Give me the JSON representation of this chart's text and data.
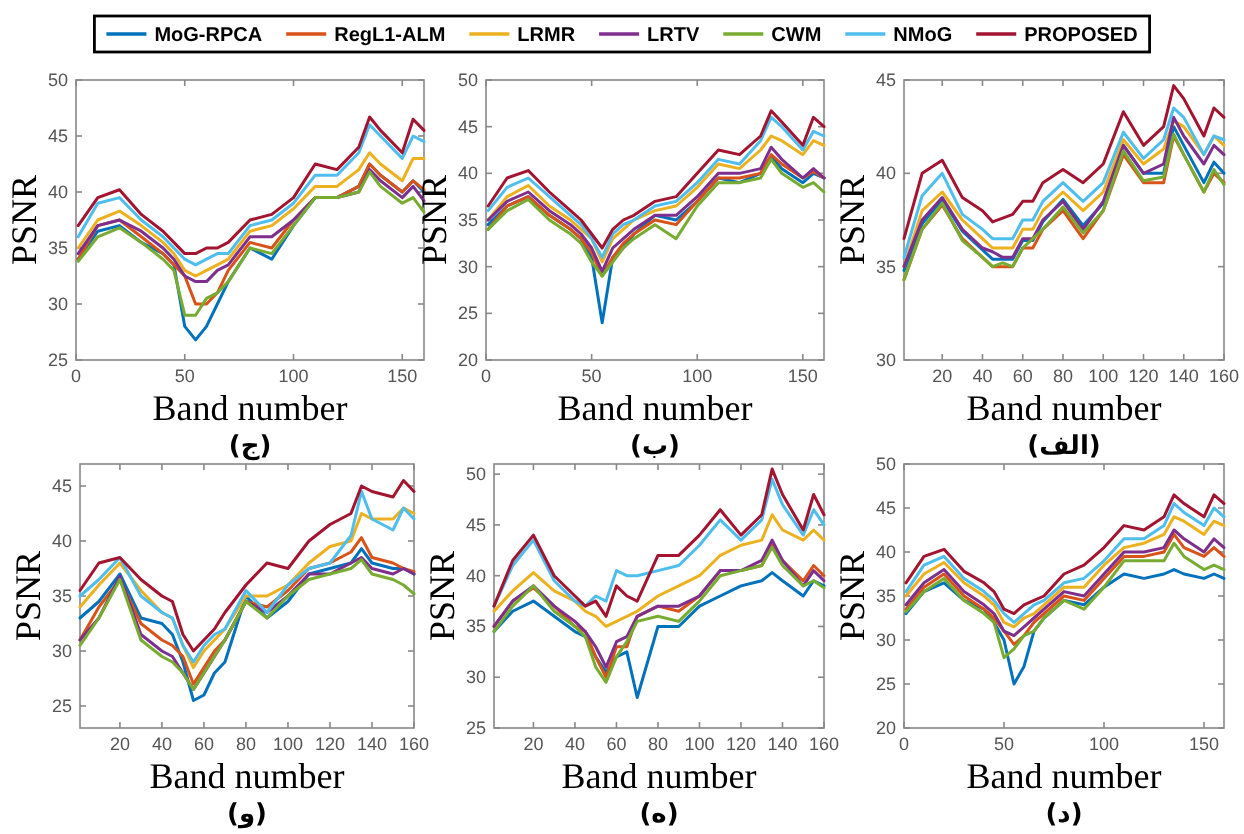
{
  "chart_data": [
    {
      "type": "line",
      "title": "(ج)",
      "xlabel": "Band number",
      "ylabel": "PSNR",
      "legend": "top",
      "x": [
        1,
        10,
        20,
        30,
        40,
        45,
        50,
        55,
        60,
        65,
        70,
        80,
        90,
        100,
        110,
        120,
        130,
        135,
        140,
        150,
        155,
        160
      ],
      "xlim": [
        0,
        160
      ],
      "xticks": [
        0,
        50,
        100,
        150
      ],
      "ylim": [
        25,
        50
      ],
      "yticks": [
        25,
        30,
        35,
        40,
        45,
        50
      ],
      "series": [
        {
          "name": "MoG-RPCA",
          "color": "#0072bd",
          "values": [
            34,
            36.5,
            37,
            35.5,
            34.5,
            33.5,
            28,
            26.8,
            28,
            30,
            32,
            35,
            34,
            37,
            39.5,
            39.5,
            40.5,
            42.5,
            41.5,
            40,
            41,
            40
          ]
        },
        {
          "name": "RegL1-ALM",
          "color": "#d95319",
          "values": [
            34,
            37,
            37.5,
            36,
            34.5,
            33.5,
            32.5,
            30,
            30,
            31,
            33,
            35.5,
            35,
            37.5,
            39.5,
            39.5,
            40.5,
            42.5,
            41.5,
            40,
            41,
            40.2
          ]
        },
        {
          "name": "LRMR",
          "color": "#edb120",
          "values": [
            35,
            37.5,
            38.3,
            37,
            35.5,
            34.5,
            33,
            32.5,
            33,
            33.5,
            34,
            36.5,
            37,
            38.5,
            40.5,
            40.5,
            42,
            43.5,
            42.5,
            41,
            43,
            43
          ]
        },
        {
          "name": "LRTV",
          "color": "#7e2f8e",
          "values": [
            34.5,
            37,
            37.5,
            36.5,
            35,
            34,
            32.5,
            32,
            32,
            33,
            33.5,
            36,
            36,
            37.5,
            39.5,
            39.5,
            40,
            42,
            41,
            39.5,
            40.5,
            39.2
          ]
        },
        {
          "name": "CWM",
          "color": "#77ac30",
          "values": [
            33.8,
            36,
            36.8,
            35.5,
            34,
            33,
            29,
            29,
            30.5,
            31,
            32,
            35,
            34.5,
            37,
            39.5,
            39.5,
            40,
            41.8,
            40.5,
            39,
            39.5,
            38.2
          ]
        },
        {
          "name": "NMoG",
          "color": "#4dbeee",
          "values": [
            36,
            39,
            39.5,
            37.5,
            36,
            35,
            34,
            33.5,
            34,
            34.5,
            34.5,
            37,
            37.5,
            39,
            41.5,
            41.5,
            43.5,
            46,
            45,
            43,
            45,
            44.5
          ]
        },
        {
          "name": "PROPOSED",
          "color": "#a2142f",
          "values": [
            37,
            39.5,
            40.2,
            38,
            36.5,
            35.5,
            34.5,
            34.5,
            35,
            35,
            35.5,
            37.5,
            38,
            39.5,
            42.5,
            42,
            44,
            46.7,
            45.5,
            43.5,
            46.5,
            45.5
          ]
        }
      ]
    },
    {
      "type": "line",
      "title": "(ب)",
      "xlabel": "Band number",
      "ylabel": "PSNR",
      "x": [
        1,
        10,
        20,
        30,
        40,
        45,
        50,
        55,
        60,
        65,
        70,
        80,
        90,
        100,
        110,
        120,
        130,
        135,
        140,
        150,
        155,
        160
      ],
      "xlim": [
        0,
        160
      ],
      "xticks": [
        0,
        50,
        100,
        150
      ],
      "ylim": [
        20,
        50
      ],
      "yticks": [
        20,
        25,
        30,
        35,
        40,
        45,
        50
      ],
      "series": [
        {
          "color": "#0072bd",
          "values": [
            34.5,
            36.5,
            37.5,
            35.5,
            34,
            33,
            31,
            24,
            31,
            32,
            33.5,
            35.5,
            35,
            37,
            39.5,
            39,
            40,
            41.8,
            40.5,
            39,
            40,
            39.5
          ]
        },
        {
          "color": "#d95319",
          "values": [
            34,
            36.5,
            37.5,
            35.5,
            34,
            33,
            31.5,
            29,
            31,
            32.5,
            33.5,
            35,
            34.5,
            37,
            39.5,
            39.5,
            40,
            42,
            41,
            39.5,
            40.2,
            39.5
          ]
        },
        {
          "color": "#edb120",
          "values": [
            35,
            37.5,
            38.7,
            36.5,
            35,
            34,
            33,
            30.5,
            33,
            34,
            35,
            36,
            36.5,
            38.5,
            41,
            40.5,
            42.5,
            44,
            43.5,
            42,
            43.5,
            43
          ]
        },
        {
          "color": "#7e2f8e",
          "values": [
            35,
            37,
            38,
            36,
            34.5,
            33.5,
            32,
            29.5,
            32,
            33,
            34,
            35.5,
            35.5,
            37.5,
            40,
            40,
            40.5,
            42.8,
            41.5,
            39.5,
            40.5,
            39.5
          ]
        },
        {
          "color": "#77ac30",
          "values": [
            34,
            36,
            37.2,
            35,
            33.5,
            32.5,
            30.5,
            29,
            30.5,
            32,
            33,
            34.5,
            33,
            36.5,
            39,
            39,
            39.5,
            41.5,
            40,
            38.5,
            39,
            38
          ]
        },
        {
          "color": "#4dbeee",
          "values": [
            36,
            38.5,
            39.5,
            37.5,
            35.5,
            34.5,
            33,
            31,
            33.5,
            34.5,
            35,
            36.5,
            37,
            39,
            41.5,
            41,
            43.5,
            46,
            45,
            42.5,
            44.5,
            44
          ]
        },
        {
          "color": "#a2142f",
          "values": [
            36.5,
            39.5,
            40.3,
            38,
            36,
            35,
            33.5,
            32,
            34,
            35,
            35.5,
            37,
            37.5,
            40,
            42.5,
            42,
            44,
            46.7,
            45.5,
            43,
            46,
            45
          ]
        }
      ]
    },
    {
      "type": "line",
      "title": "(الف)",
      "xlabel": "Band number",
      "ylabel": "PSNR",
      "x": [
        1,
        10,
        20,
        30,
        40,
        45,
        50,
        55,
        60,
        65,
        70,
        80,
        90,
        100,
        110,
        120,
        130,
        135,
        140,
        150,
        155,
        160
      ],
      "xlim": [
        1,
        160
      ],
      "xticks": [
        20,
        40,
        60,
        80,
        100,
        120,
        140,
        160
      ],
      "ylim": [
        30,
        45
      ],
      "yticks": [
        30,
        35,
        40,
        45
      ],
      "series": [
        {
          "color": "#0072bd",
          "values": [
            34.8,
            37.3,
            38.6,
            36.9,
            35.9,
            35.4,
            35.4,
            35.4,
            36.4,
            36.4,
            37.4,
            38.6,
            37.2,
            38.4,
            41.5,
            40,
            40,
            42.5,
            41.5,
            39.5,
            40.6,
            40
          ]
        },
        {
          "color": "#d95319",
          "values": [
            34.3,
            37,
            38.3,
            36.5,
            35.5,
            35,
            35,
            35,
            36,
            36,
            37,
            38,
            36.5,
            38,
            41,
            39.5,
            39.5,
            42,
            41,
            39,
            40,
            39.5
          ]
        },
        {
          "color": "#edb120",
          "values": [
            35,
            38,
            39,
            37.5,
            36.5,
            36,
            36,
            36,
            37,
            37,
            38,
            39,
            38,
            39,
            41.8,
            40.5,
            41.3,
            42.8,
            42.5,
            41,
            42,
            41.5
          ]
        },
        {
          "color": "#7e2f8e",
          "values": [
            35,
            37.5,
            38.7,
            37,
            36,
            35.8,
            35.5,
            35.5,
            36.5,
            36.5,
            37.5,
            38.5,
            37,
            38.5,
            41.5,
            40,
            40.5,
            43,
            42,
            40.5,
            41.5,
            41
          ]
        },
        {
          "color": "#77ac30",
          "values": [
            34.3,
            37,
            38.4,
            36.4,
            35.5,
            35,
            35.2,
            35,
            36,
            36.5,
            37,
            38.2,
            36.8,
            38,
            41.2,
            39.6,
            39.8,
            42.1,
            41,
            39,
            40.2,
            39.4
          ]
        },
        {
          "color": "#4dbeee",
          "values": [
            35.5,
            38.8,
            40,
            37.8,
            37,
            36.5,
            36.5,
            36.5,
            37.5,
            37.5,
            38.5,
            39.5,
            38.5,
            39.5,
            42.2,
            40.8,
            41.8,
            43.5,
            43,
            41,
            42,
            41.8
          ]
        },
        {
          "color": "#a2142f",
          "values": [
            36.5,
            40,
            40.7,
            38.7,
            38,
            37.4,
            37.6,
            37.8,
            38.5,
            38.5,
            39.5,
            40.2,
            39.5,
            40.5,
            43.3,
            41.5,
            42.5,
            44.7,
            44,
            42,
            43.5,
            43
          ]
        }
      ]
    },
    {
      "type": "line",
      "title": "(و)",
      "xlabel": "Band number",
      "ylabel": "PSNR",
      "x": [
        1,
        10,
        20,
        30,
        40,
        45,
        50,
        55,
        60,
        65,
        70,
        80,
        90,
        100,
        110,
        120,
        130,
        135,
        140,
        150,
        155,
        160
      ],
      "xlim": [
        1,
        160
      ],
      "xticks": [
        20,
        40,
        60,
        80,
        100,
        120,
        140,
        160
      ],
      "ylim": [
        23,
        47
      ],
      "yticks": [
        25,
        30,
        35,
        40,
        45
      ],
      "series": [
        {
          "color": "#0072bd",
          "values": [
            33,
            34.5,
            37,
            33,
            32.5,
            31.5,
            29,
            25.5,
            26,
            28,
            29,
            35,
            33,
            34.5,
            37,
            37.5,
            38,
            39.3,
            38,
            37.5,
            37.5,
            37
          ]
        },
        {
          "color": "#d95319",
          "values": [
            31,
            34,
            36.5,
            32.5,
            31,
            30.5,
            29.5,
            27,
            28.5,
            30,
            31,
            34.5,
            34,
            35.5,
            37.5,
            38,
            39,
            40.3,
            38.5,
            38,
            37.5,
            37.2
          ]
        },
        {
          "color": "#edb120",
          "values": [
            34,
            36,
            38,
            35.5,
            33.5,
            33,
            30.5,
            28.5,
            30,
            31,
            32,
            35,
            35,
            36,
            38,
            39.5,
            40,
            42.5,
            42,
            42,
            43,
            42.5
          ]
        },
        {
          "color": "#7e2f8e",
          "values": [
            31,
            33,
            36.8,
            31.5,
            30,
            29.5,
            28,
            26.5,
            28,
            29.5,
            31,
            34.5,
            33.5,
            35,
            37,
            37,
            38,
            38.5,
            37.5,
            37,
            37.5,
            37
          ]
        },
        {
          "color": "#77ac30",
          "values": [
            30.5,
            33,
            36.5,
            31,
            29.5,
            29,
            28,
            26.5,
            28,
            29.5,
            31,
            34.5,
            33,
            35,
            36.5,
            37,
            37.5,
            38.3,
            37,
            36.5,
            36,
            35.2
          ]
        },
        {
          "color": "#4dbeee",
          "values": [
            35,
            36.5,
            38.5,
            35,
            33.5,
            33,
            30.5,
            29,
            30.5,
            31.5,
            32,
            35.5,
            33.5,
            36,
            37.5,
            38,
            40.5,
            44.5,
            42,
            41,
            43,
            42
          ]
        },
        {
          "color": "#a2142f",
          "values": [
            35.5,
            38,
            38.5,
            36.5,
            35,
            34.5,
            31.5,
            30,
            31,
            32,
            33.5,
            36,
            38,
            37.5,
            40,
            41.5,
            42.5,
            45,
            44.5,
            44,
            45.5,
            44.5
          ]
        }
      ]
    },
    {
      "type": "line",
      "title": "(ه)",
      "xlabel": "Band number",
      "ylabel": "PSNR",
      "x": [
        1,
        10,
        20,
        30,
        40,
        45,
        50,
        55,
        60,
        65,
        70,
        80,
        90,
        100,
        110,
        120,
        130,
        135,
        140,
        150,
        155,
        160
      ],
      "xlim": [
        1,
        160
      ],
      "xticks": [
        20,
        40,
        60,
        80,
        100,
        120,
        140,
        160
      ],
      "ylim": [
        25,
        51
      ],
      "yticks": [
        25,
        30,
        35,
        40,
        45,
        50
      ],
      "series": [
        {
          "color": "#0072bd",
          "values": [
            34.5,
            36.5,
            37.5,
            36,
            34.5,
            34,
            32,
            30.5,
            32,
            32.5,
            28,
            35,
            35,
            37,
            38,
            39,
            39.5,
            40.3,
            39.5,
            38,
            39.5,
            39
          ]
        },
        {
          "color": "#d95319",
          "values": [
            35,
            37.5,
            38.8,
            37,
            35,
            34.5,
            32,
            30,
            33,
            33,
            36,
            37,
            36.5,
            38,
            40.5,
            40.5,
            41,
            43,
            41.5,
            39.5,
            41,
            40
          ]
        },
        {
          "color": "#edb120",
          "values": [
            36.5,
            38.5,
            40.3,
            38.5,
            37.5,
            36.5,
            36,
            35,
            35.5,
            36,
            36.5,
            38,
            39,
            40,
            42,
            43,
            43.5,
            46,
            44.5,
            43.5,
            44.5,
            43.5
          ]
        },
        {
          "color": "#7e2f8e",
          "values": [
            35,
            37.5,
            39,
            37,
            35.5,
            34.5,
            33,
            31,
            33.5,
            34,
            36,
            37,
            37,
            38,
            40.5,
            40.5,
            41.5,
            43.5,
            41.5,
            39,
            40.5,
            39.5
          ]
        },
        {
          "color": "#77ac30",
          "values": [
            34.5,
            37,
            39,
            36.5,
            35,
            34,
            31,
            29.5,
            32,
            33.5,
            35.5,
            36,
            35.5,
            37.5,
            40,
            40.5,
            41,
            42.8,
            41,
            39,
            39.5,
            38.8
          ]
        },
        {
          "color": "#4dbeee",
          "values": [
            37,
            41,
            43.5,
            39.5,
            37.5,
            37,
            38,
            37.5,
            40.5,
            40,
            40,
            40.5,
            41,
            43,
            45.5,
            43.5,
            45.5,
            49.5,
            47,
            44,
            46.5,
            45
          ]
        },
        {
          "color": "#a2142f",
          "values": [
            37,
            41.5,
            44,
            40,
            38,
            37,
            37.5,
            36,
            39,
            38,
            37.5,
            42,
            42,
            44,
            46.5,
            44,
            46,
            50.5,
            48,
            44.5,
            48,
            46
          ]
        }
      ]
    },
    {
      "type": "line",
      "title": "(د)",
      "xlabel": "Band number",
      "ylabel": "PSNR",
      "x": [
        1,
        10,
        20,
        30,
        40,
        45,
        50,
        55,
        60,
        65,
        70,
        80,
        90,
        100,
        110,
        120,
        130,
        135,
        140,
        150,
        155,
        160
      ],
      "xlim": [
        0,
        160
      ],
      "xticks": [
        0,
        50,
        100,
        150
      ],
      "ylim": [
        20,
        50
      ],
      "yticks": [
        20,
        25,
        30,
        35,
        40,
        45,
        50
      ],
      "series": [
        {
          "color": "#0072bd",
          "values": [
            33,
            35.5,
            36.5,
            34.5,
            33.5,
            32,
            30,
            25,
            27,
            31,
            32.5,
            34.5,
            34,
            36,
            37.5,
            37,
            37.5,
            38,
            37.5,
            37,
            37.5,
            37
          ]
        },
        {
          "color": "#d95319",
          "values": [
            33.5,
            36,
            37.5,
            35,
            33.5,
            32.5,
            31,
            29.5,
            30.5,
            32,
            33,
            35,
            34.5,
            37,
            39.5,
            39.5,
            40,
            42,
            40.5,
            39.5,
            40.5,
            39.5
          ]
        },
        {
          "color": "#edb120",
          "values": [
            35,
            37.5,
            38.8,
            36.5,
            35,
            34,
            32,
            31.5,
            32.5,
            33,
            34,
            36,
            36,
            38.5,
            40.5,
            41,
            42,
            44,
            43.5,
            42,
            43.5,
            43
          ]
        },
        {
          "color": "#7e2f8e",
          "values": [
            34,
            36.5,
            38,
            35.5,
            34,
            33,
            31,
            30.5,
            31.5,
            32.5,
            33.5,
            35.5,
            35,
            37.5,
            40,
            40,
            40.5,
            42.5,
            41.5,
            40,
            41.5,
            40.5
          ]
        },
        {
          "color": "#77ac30",
          "values": [
            33.2,
            35.5,
            37,
            34.5,
            33,
            32,
            28,
            29,
            30.5,
            31,
            32.5,
            34.5,
            33.5,
            36,
            39,
            39,
            39,
            41,
            39.5,
            38,
            38.5,
            38
          ]
        },
        {
          "color": "#4dbeee",
          "values": [
            35.5,
            38.5,
            39.5,
            37,
            35.5,
            34.5,
            33,
            32,
            33,
            34,
            34.5,
            36.5,
            37,
            39,
            41.5,
            41.5,
            43,
            45.5,
            44.5,
            43,
            45,
            44
          ]
        },
        {
          "color": "#a2142f",
          "values": [
            36.5,
            39.5,
            40.3,
            37.8,
            36.5,
            35.5,
            33.5,
            33,
            34,
            34.5,
            35,
            37.5,
            38.5,
            40.5,
            43,
            42.5,
            44,
            46.5,
            45.5,
            44,
            46.5,
            45.5
          ]
        }
      ]
    }
  ]
}
